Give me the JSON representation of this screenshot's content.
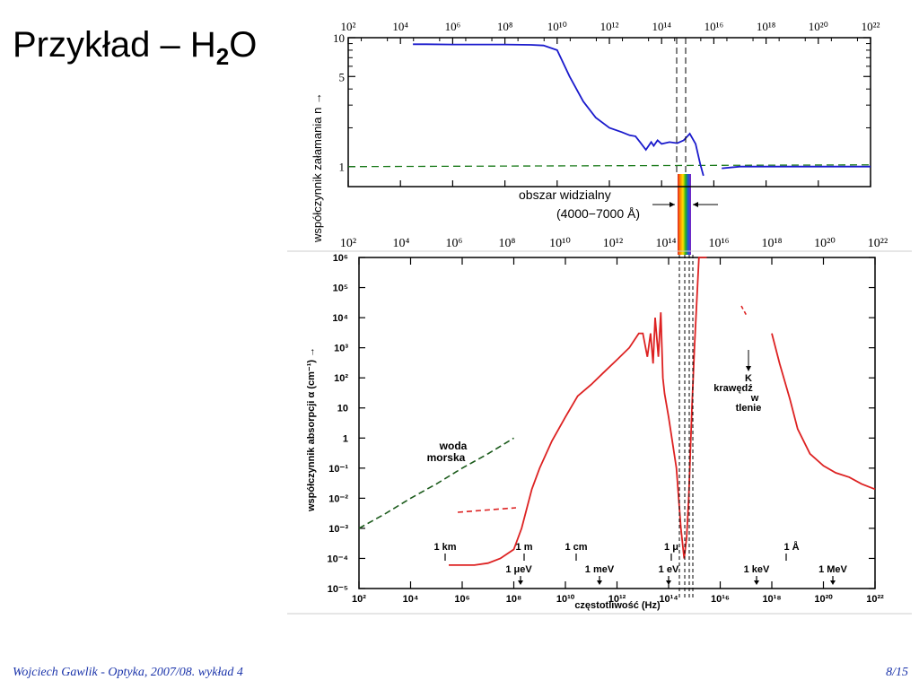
{
  "slide": {
    "title_main": "Przykład – H",
    "title_sub": "2",
    "title_end": "O",
    "footer_left": "Wojciech Gawlik - Optyka, 2007/08. wykład 4",
    "footer_right": "8/15"
  },
  "colors": {
    "refraction_curve": "#1a1acc",
    "absorption_curve": "#dd2222",
    "reference_line": "#1a7a1a",
    "sea_water_line": "#1a5a1a",
    "footer_text": "#1a33aa"
  },
  "chart_data": [
    {
      "type": "line",
      "xscale": "log",
      "yscale": "log",
      "xlim": [
        100,
        1e+22
      ],
      "ylim": [
        0.7,
        10
      ],
      "xlabel": "",
      "ylabel": "współczynnik załamania n →",
      "x_ticks": [
        "10²",
        "10⁴",
        "10⁶",
        "10⁸",
        "10¹⁰",
        "10¹²",
        "10¹⁴",
        "10¹⁶",
        "10¹⁸",
        "10²⁰",
        "10²²"
      ],
      "y_ticks": [
        "10",
        "5",
        "1"
      ],
      "annotation_visible": [
        "obszar widzialny",
        "(4000−7000 Å)"
      ],
      "series": [
        {
          "x": [
            30000.0,
            100000.0,
            1000000.0,
            10000000.0,
            100000000.0,
            1000000000.0,
            3000000000.0,
            10000000000.0,
            30000000000.0,
            100000000000.0,
            300000000000.0,
            1000000000000.0,
            3000000000000.0,
            6000000000000.0,
            10000000000000.0,
            15000000000000.0,
            25000000000000.0,
            40000000000000.0,
            50000000000000.0,
            70000000000000.0,
            100000000000000.0,
            200000000000000.0,
            400000000000000.0,
            700000000000000.0,
            1200000000000000.0,
            2000000000000000.0,
            3000000000000000.0,
            4000000000000000.0
          ],
          "y": [
            8.9,
            8.9,
            8.85,
            8.85,
            8.85,
            8.8,
            8.7,
            8.0,
            5.0,
            3.2,
            2.4,
            2.0,
            1.85,
            1.75,
            1.72,
            1.55,
            1.35,
            1.55,
            1.45,
            1.6,
            1.5,
            1.55,
            1.52,
            1.6,
            1.8,
            1.5,
            1.05,
            0.85
          ]
        },
        {
          "x": [
            2e+16,
            1e+17,
            1e+18,
            1e+19,
            1e+20,
            1e+21,
            1e+22
          ],
          "y": [
            0.97,
            1.0,
            1.0,
            1.0,
            1.0,
            1.0,
            1.0
          ]
        }
      ],
      "reference_line_y": 1.0
    },
    {
      "type": "line",
      "xscale": "log",
      "yscale": "log",
      "xlim": [
        100,
        1e+22
      ],
      "ylim": [
        1e-05,
        1000000.0
      ],
      "xlabel": "częstotliwość (Hz)",
      "ylabel": "współczynnik absorpcji α (cm⁻¹) →",
      "x_ticks": [
        "10²",
        "10⁴",
        "10⁶",
        "10⁸",
        "10¹⁰",
        "10¹²",
        "10¹⁴",
        "10¹⁶",
        "10¹⁸",
        "10²⁰",
        "10²²"
      ],
      "y_ticks": [
        "10⁶",
        "10⁵",
        "10⁴",
        "10³",
        "10²",
        "10",
        "1",
        "10⁻¹",
        "10⁻²",
        "10⁻³",
        "10⁻⁴",
        "10⁻⁵"
      ],
      "annotations": [
        "woda morska",
        "K krawędź w tlenie"
      ],
      "scale_marks_top": [
        "1 km",
        "1 m",
        "1 cm",
        "1 μ",
        "1 Å"
      ],
      "scale_marks_bottom": [
        "1 μeV",
        "1 meV",
        "1 eV",
        "1 keV",
        "1 MeV"
      ],
      "series": [
        {
          "name": "",
          "x": [
            300000.0,
            1000000.0,
            3000000.0,
            10000000.0,
            30000000.0,
            100000000.0,
            200000000.0,
            500000000.0,
            1000000000.0,
            3000000000.0,
            10000000000.0,
            30000000000.0,
            100000000000.0,
            300000000000.0,
            1000000000000.0,
            3000000000000.0,
            7000000000000.0,
            10000000000000.0,
            15000000000000.0,
            20000000000000.0,
            25000000000000.0,
            30000000000000.0,
            40000000000000.0,
            50000000000000.0,
            60000000000000.0,
            70000000000000.0,
            100000000000000.0,
            200000000000000.0,
            300000000000000.0,
            400000000000000.0,
            500000000000000.0,
            600000000000000.0,
            800000000000000.0,
            1000000000000000.0,
            1500000000000000.0,
            2000000000000000.0,
            3000000000000000.0
          ],
          "y": [
            6e-05,
            6e-05,
            6e-05,
            7e-05,
            0.0001,
            0.0002,
            0.001,
            0.02,
            0.1,
            0.8,
            5,
            25,
            60,
            150,
            400,
            1000,
            3000,
            3000,
            500,
            3000,
            300,
            10000,
            500,
            15000,
            100,
            30,
            5,
            0.1,
            0.001,
            0.0001,
            0.0005,
            0.01,
            10,
            1000,
            1000000,
            1000000,
            1000000
          ]
        },
        {
          "name": "",
          "x": [
            1e+18,
            2e+18,
            5e+18,
            1e+19,
            3e+19,
            1e+20,
            3e+20,
            1e+21,
            3e+21,
            1e+22
          ],
          "y": [
            3000,
            300,
            20,
            2,
            0.3,
            0.12,
            0.07,
            0.05,
            0.03,
            0.02
          ]
        },
        {
          "name": "woda morska",
          "x": [
            100,
            1000.0,
            10000.0,
            100000.0,
            1000000.0,
            10000000.0,
            100000000.0
          ],
          "y": [
            0.001,
            0.003,
            0.01,
            0.03,
            0.1,
            0.3,
            1.0
          ]
        }
      ]
    }
  ]
}
